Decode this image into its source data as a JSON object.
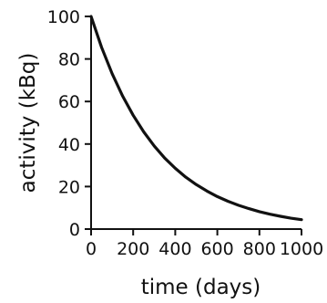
{
  "chart_data": {
    "type": "line",
    "xlabel": "time (days)",
    "ylabel": "activity (kBq)",
    "xlim": [
      0,
      1000
    ],
    "ylim": [
      0,
      100
    ],
    "x_ticks": [
      0,
      200,
      400,
      600,
      800,
      1000
    ],
    "y_ticks": [
      0,
      20,
      40,
      60,
      80,
      100
    ],
    "grid": false,
    "line_color": "#111111",
    "series": [
      {
        "x": [
          0,
          50,
          100,
          150,
          200,
          250,
          300,
          350,
          400,
          450,
          500,
          550,
          600,
          650,
          700,
          750,
          800,
          850,
          900,
          950,
          1000
        ],
        "values": [
          100,
          85.5,
          73.1,
          62.5,
          53.5,
          45.7,
          39.1,
          33.4,
          28.6,
          24.4,
          20.9,
          17.9,
          15.3,
          13.1,
          11.2,
          9.6,
          8.2,
          7.0,
          6.0,
          5.1,
          4.4
        ]
      }
    ]
  }
}
